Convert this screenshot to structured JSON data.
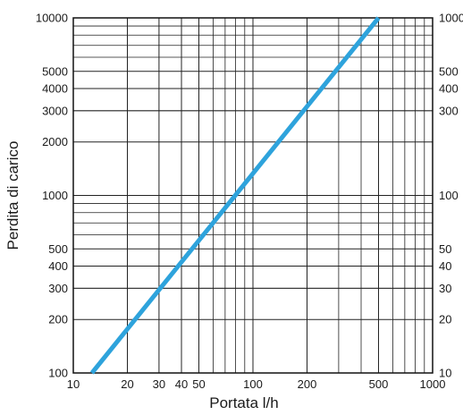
{
  "chart_data": {
    "type": "line",
    "title": "",
    "xlabel": "Portata l/h",
    "ylabel": "Perdita di carico",
    "x_scale": "log",
    "y_scale": "log",
    "xlim": [
      10,
      1000
    ],
    "ylim": [
      100,
      10000
    ],
    "grid": true,
    "x_ticks": [
      {
        "value": 10,
        "label": "10"
      },
      {
        "value": 20,
        "label": "20"
      },
      {
        "value": 30,
        "label": "30"
      },
      {
        "value": 40,
        "label": "40"
      },
      {
        "value": 50,
        "label": "50"
      },
      {
        "value": 100,
        "label": "100"
      },
      {
        "value": 200,
        "label": "200"
      },
      {
        "value": 500,
        "label": "500"
      },
      {
        "value": 1000,
        "label": "1000"
      }
    ],
    "y_ticks_left": [
      {
        "value": 100,
        "label": "100"
      },
      {
        "value": 200,
        "label": "200"
      },
      {
        "value": 300,
        "label": "300"
      },
      {
        "value": 400,
        "label": "400"
      },
      {
        "value": 500,
        "label": "500"
      },
      {
        "value": 1000,
        "label": "1000"
      },
      {
        "value": 2000,
        "label": "2000"
      },
      {
        "value": 3000,
        "label": "3000"
      },
      {
        "value": 4000,
        "label": "4000"
      },
      {
        "value": 5000,
        "label": "5000"
      },
      {
        "value": 10000,
        "label": "10000"
      }
    ],
    "y_ticks_right": [
      {
        "value": 100,
        "label": "10"
      },
      {
        "value": 200,
        "label": "20"
      },
      {
        "value": 300,
        "label": "30"
      },
      {
        "value": 400,
        "label": "40"
      },
      {
        "value": 500,
        "label": "50"
      },
      {
        "value": 1000,
        "label": "100"
      },
      {
        "value": 3000,
        "label": "300"
      },
      {
        "value": 4000,
        "label": "400"
      },
      {
        "value": 5000,
        "label": "500"
      },
      {
        "value": 10000,
        "label": "1000"
      }
    ],
    "series": [
      {
        "color": "#2ea3dc",
        "x": [
          12.7,
          500
        ],
        "y": [
          100,
          10000
        ]
      }
    ]
  }
}
